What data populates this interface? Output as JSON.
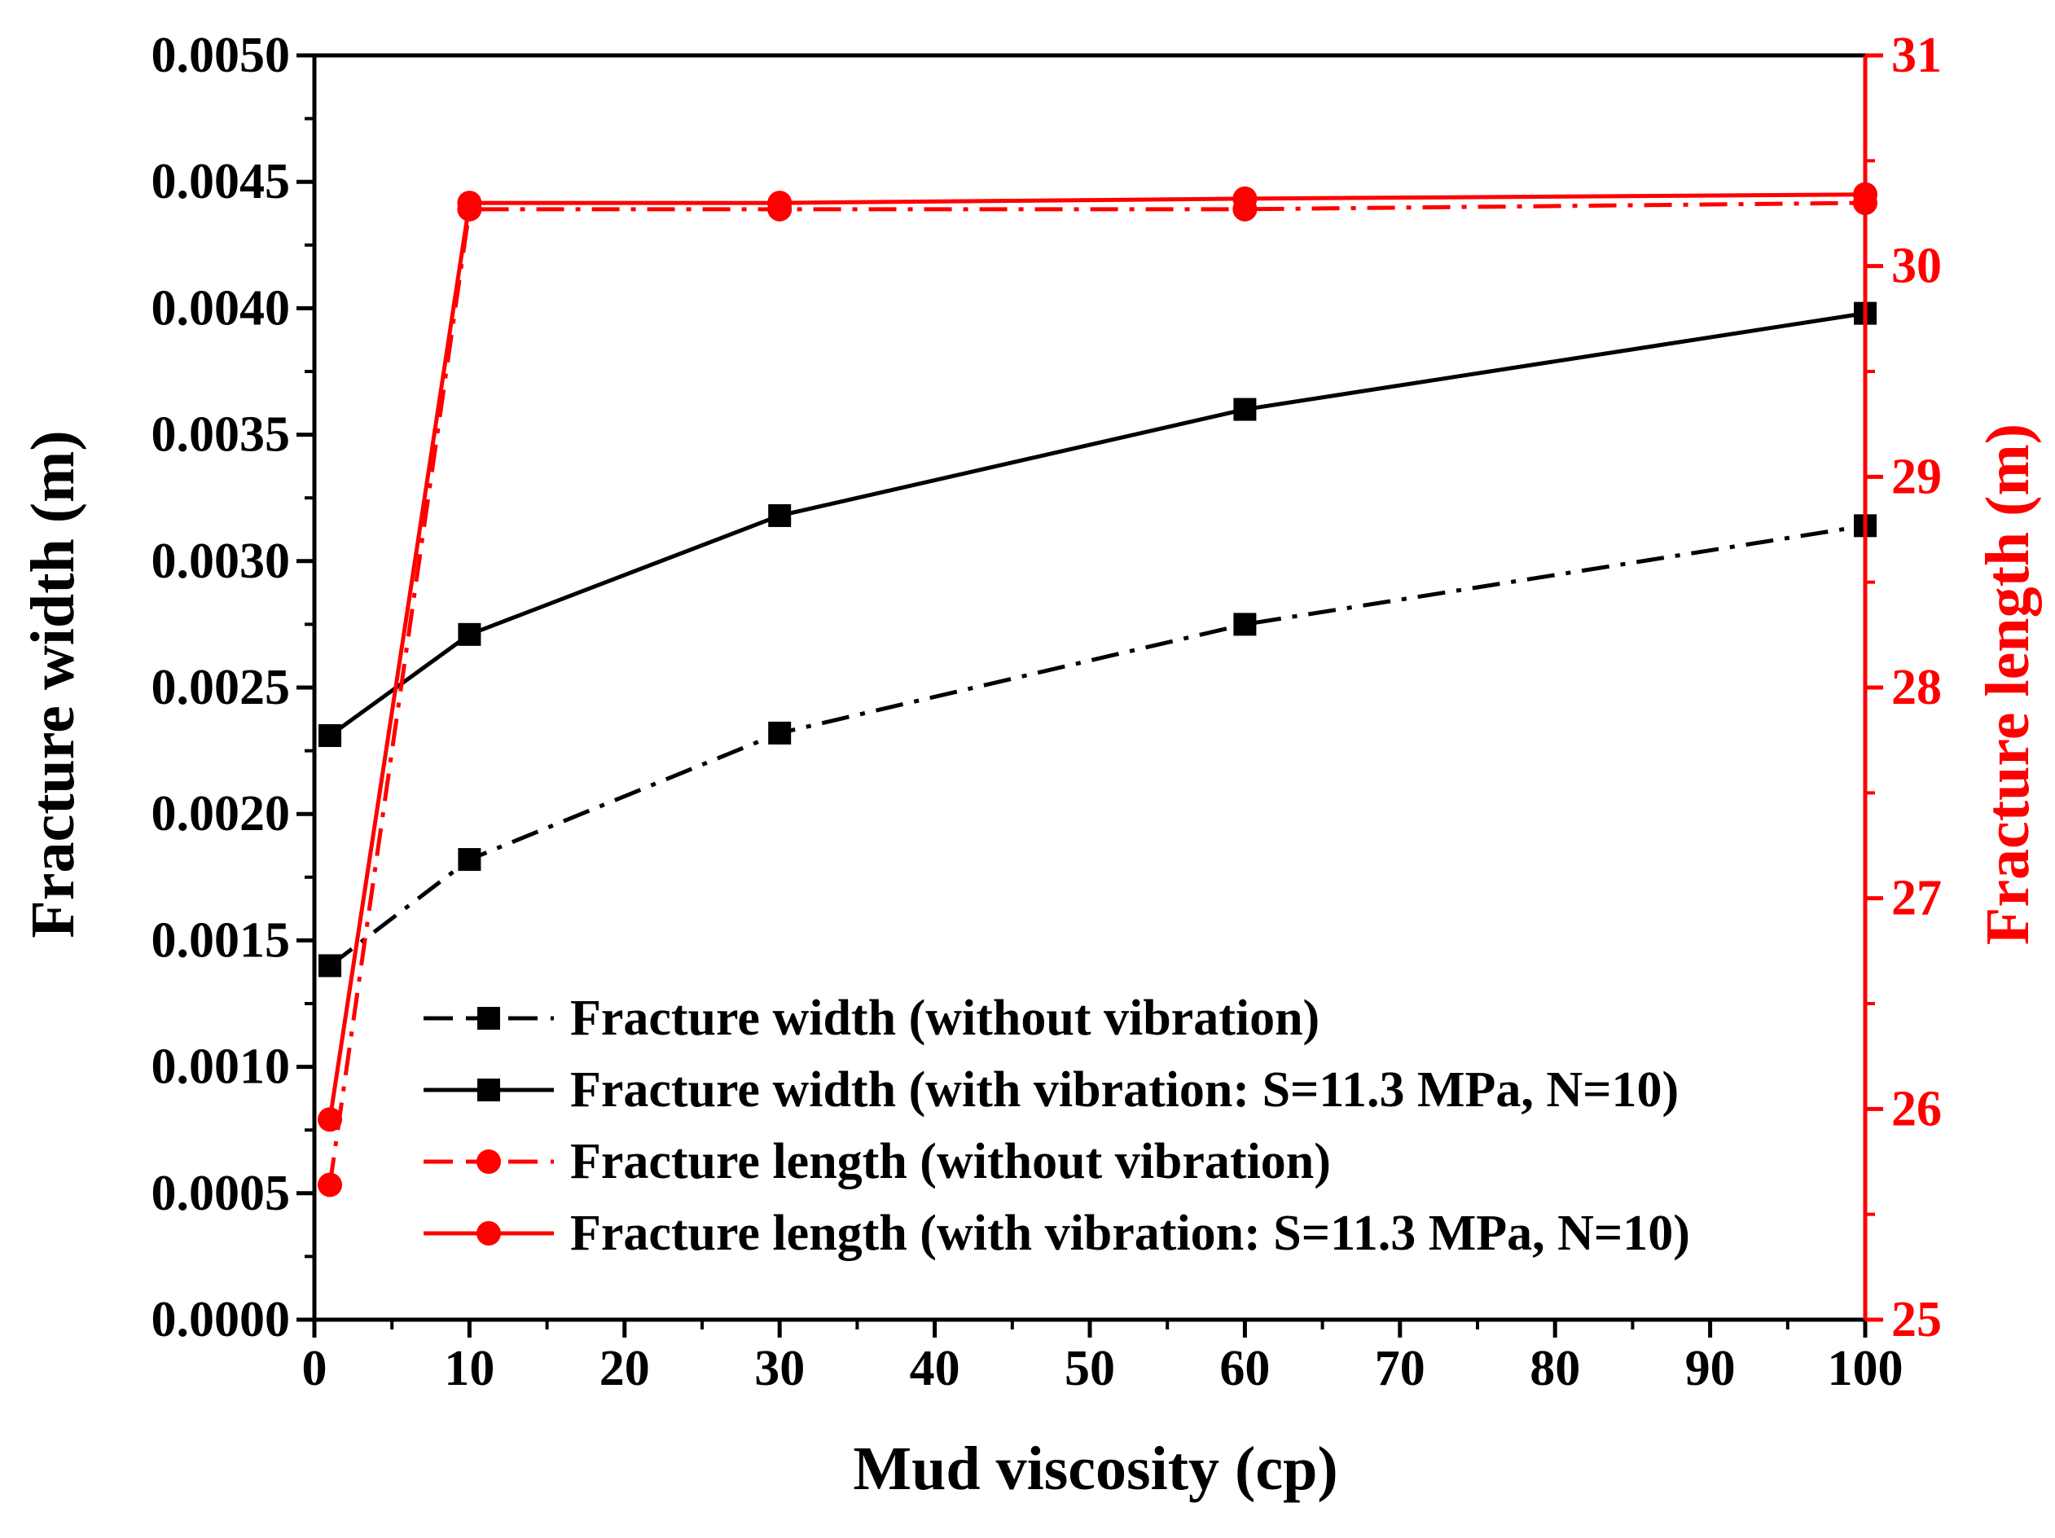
{
  "chart_data": {
    "type": "line",
    "title": "",
    "xlabel": "Mud viscosity (cp)",
    "ylabel_left": "Fracture width (m)",
    "ylabel_right": "Fracture length (m)",
    "xlim": [
      0,
      100
    ],
    "ylim_left": [
      0,
      0.005
    ],
    "ylim_right": [
      25,
      31
    ],
    "x_ticks": [
      0,
      10,
      20,
      30,
      40,
      50,
      60,
      70,
      80,
      90,
      100
    ],
    "x_tick_labels": [
      "0",
      "10",
      "20",
      "30",
      "40",
      "50",
      "60",
      "70",
      "80",
      "90",
      "100"
    ],
    "y_left_ticks": [
      0,
      0.0005,
      0.001,
      0.0015,
      0.002,
      0.0025,
      0.003,
      0.0035,
      0.004,
      0.0045,
      0.005
    ],
    "y_left_tick_labels": [
      "0.0000",
      "0.0005",
      "0.0010",
      "0.0015",
      "0.0020",
      "0.0025",
      "0.0030",
      "0.0035",
      "0.0040",
      "0.0045",
      "0.0050"
    ],
    "y_right_ticks": [
      25,
      26,
      27,
      28,
      29,
      30,
      31
    ],
    "y_right_tick_labels": [
      "25",
      "26",
      "27",
      "28",
      "29",
      "30",
      "31"
    ],
    "legend_position": "bottom-center",
    "colors": {
      "black": "#000000",
      "red": "#ff0000"
    },
    "series": [
      {
        "name": "Fracture width (without vibration)",
        "axis": "left",
        "color": "#000000",
        "dash": "dash-dot",
        "marker": "square",
        "x": [
          1,
          10,
          30,
          60,
          100
        ],
        "values": [
          0.0014,
          0.00182,
          0.00232,
          0.00275,
          0.00314
        ]
      },
      {
        "name": "Fracture width (with vibration: S=11.3 MPa, N=10)",
        "axis": "left",
        "color": "#000000",
        "dash": "solid",
        "marker": "square",
        "x": [
          1,
          10,
          30,
          60,
          100
        ],
        "values": [
          0.00231,
          0.00271,
          0.00318,
          0.0036,
          0.00398
        ]
      },
      {
        "name": "Fracture length (without vibration)",
        "axis": "right",
        "color": "#ff0000",
        "dash": "dash-dot",
        "marker": "circle",
        "x": [
          1,
          10,
          30,
          60,
          100
        ],
        "values": [
          25.64,
          30.27,
          30.27,
          30.27,
          30.3
        ]
      },
      {
        "name": "Fracture length (with vibration: S=11.3 MPa, N=10)",
        "axis": "right",
        "color": "#ff0000",
        "dash": "solid",
        "marker": "circle",
        "x": [
          1,
          10,
          30,
          60,
          100
        ],
        "values": [
          25.95,
          30.3,
          30.3,
          30.32,
          30.34
        ]
      }
    ]
  }
}
